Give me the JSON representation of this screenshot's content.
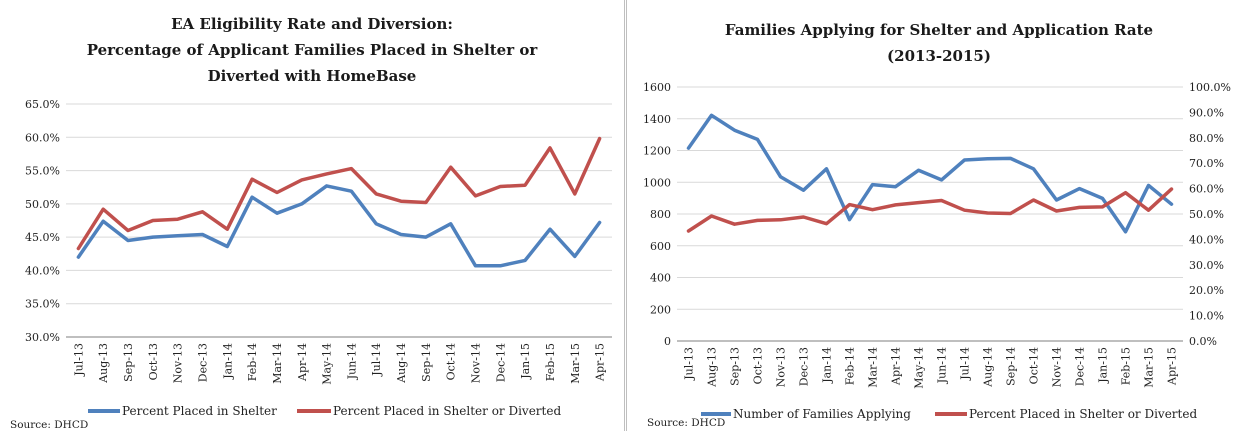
{
  "chart_data": [
    {
      "type": "line",
      "title_lines": [
        "EA Eligibility Rate and Diversion:",
        "Percentage of Applicant Families Placed in Shelter or",
        "Diverted with HomeBase"
      ],
      "categories": [
        "Jul-13",
        "Aug-13",
        "Sep-13",
        "Oct-13",
        "Nov-13",
        "Dec-13",
        "Jan-14",
        "Feb-14",
        "Mar-14",
        "Apr-14",
        "May-14",
        "Jun-14",
        "Jul-14",
        "Aug-14",
        "Sep-14",
        "Oct-14",
        "Nov-14",
        "Dec-14",
        "Jan-15",
        "Feb-15",
        "Mar-15",
        "Apr-15"
      ],
      "y_ticks": [
        "30.0%",
        "35.0%",
        "40.0%",
        "45.0%",
        "50.0%",
        "55.0%",
        "60.0%",
        "65.0%"
      ],
      "ylim": [
        30,
        65
      ],
      "series": [
        {
          "name": "Percent Placed in Shelter",
          "color": "#4f81bd",
          "values": [
            42.0,
            47.4,
            44.5,
            45.0,
            45.2,
            45.4,
            43.6,
            51.0,
            48.6,
            50.0,
            52.7,
            51.9,
            47.0,
            45.4,
            45.0,
            47.0,
            40.7,
            40.7,
            41.5,
            46.2,
            42.1,
            47.2
          ]
        },
        {
          "name": "Percent Placed in Shelter or Diverted",
          "color": "#c0504d",
          "values": [
            43.3,
            49.2,
            46.0,
            47.5,
            47.7,
            48.8,
            46.2,
            53.7,
            51.7,
            53.6,
            54.5,
            55.3,
            51.5,
            50.4,
            50.2,
            55.5,
            51.2,
            52.6,
            52.8,
            58.4,
            51.5,
            59.8
          ]
        }
      ],
      "source": "Source: DHCD"
    },
    {
      "type": "line",
      "title_lines": [
        "Families Applying for Shelter and Application Rate",
        "(2013-2015)"
      ],
      "categories": [
        "Jul-13",
        "Aug-13",
        "Sep-13",
        "Oct-13",
        "Nov-13",
        "Dec-13",
        "Jan-14",
        "Feb-14",
        "Mar-14",
        "Apr-14",
        "May-14",
        "Jun-14",
        "Jul-14",
        "Aug-14",
        "Sep-14",
        "Oct-14",
        "Nov-14",
        "Dec-14",
        "Jan-15",
        "Feb-15",
        "Mar-15",
        "Apr-15"
      ],
      "y_ticks_left": [
        "0",
        "200",
        "400",
        "600",
        "800",
        "1000",
        "1200",
        "1400",
        "1600"
      ],
      "ylim_left": [
        0,
        1600
      ],
      "y_ticks_right": [
        "0.0%",
        "10.0%",
        "20.0%",
        "30.0%",
        "40.0%",
        "50.0%",
        "60.0%",
        "70.0%",
        "80.0%",
        "90.0%",
        "100.0%"
      ],
      "ylim_right": [
        0,
        100
      ],
      "series": [
        {
          "name": "Number of Families Applying",
          "color": "#4f81bd",
          "axis": "left",
          "values": [
            1215,
            1422,
            1328,
            1270,
            1035,
            950,
            1085,
            765,
            985,
            972,
            1075,
            1015,
            1140,
            1148,
            1150,
            1085,
            888,
            960,
            898,
            688,
            980,
            862
          ]
        },
        {
          "name": "Percent Placed in Shelter or Diverted",
          "color": "#c0504d",
          "axis": "right",
          "values": [
            43.3,
            49.2,
            46.0,
            47.5,
            47.7,
            48.8,
            46.2,
            53.7,
            51.7,
            53.6,
            54.5,
            55.3,
            51.5,
            50.4,
            50.2,
            55.5,
            51.2,
            52.6,
            52.8,
            58.4,
            51.5,
            59.8
          ]
        }
      ],
      "source": "Source: DHCD"
    }
  ]
}
